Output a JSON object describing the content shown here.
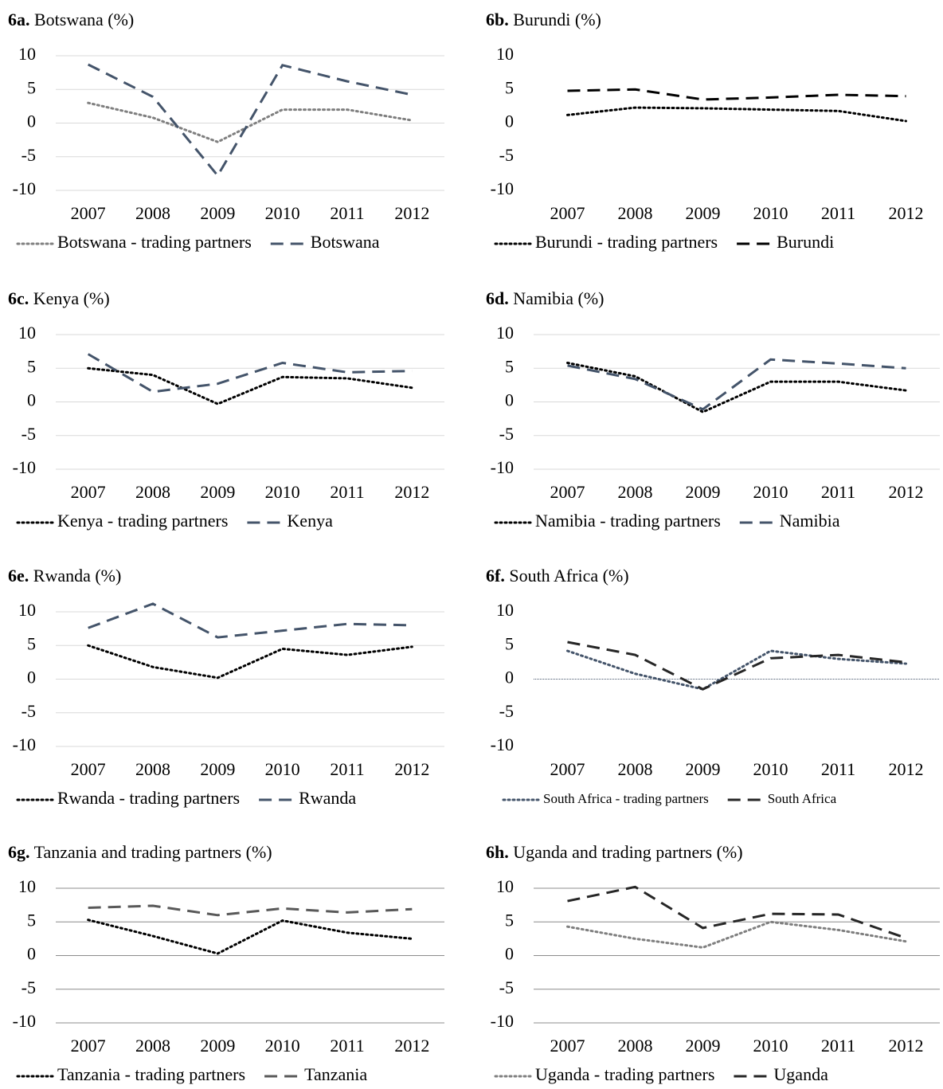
{
  "chart_data": [
    {
      "type": "line",
      "panel": "6a.",
      "title": "Botswana (%)",
      "categories": [
        "2007",
        "2008",
        "2009",
        "2010",
        "2011",
        "2012"
      ],
      "ylim": [
        -10,
        10
      ],
      "yticks": [
        -10,
        -5,
        0,
        5,
        10
      ],
      "grid": true,
      "grid_color": "#d9d9d9",
      "series": [
        {
          "name": "Botswana - trading partners",
          "color": "#7f7f7f",
          "dash": "dotted",
          "values": [
            3.0,
            0.8,
            -2.8,
            2.0,
            2.0,
            0.4
          ]
        },
        {
          "name": "Botswana",
          "color": "#44546a",
          "dash": "dashed",
          "values": [
            8.7,
            3.9,
            -7.8,
            8.6,
            6.2,
            4.2
          ]
        }
      ]
    },
    {
      "type": "line",
      "panel": "6b.",
      "title": "Burundi (%)",
      "categories": [
        "2007",
        "2008",
        "2009",
        "2010",
        "2011",
        "2012"
      ],
      "ylim": [
        -10,
        10
      ],
      "yticks": [
        -10,
        -5,
        0,
        5,
        10
      ],
      "grid": false,
      "series": [
        {
          "name": "Burundi - trading partners",
          "color": "#000000",
          "dash": "dotted",
          "values": [
            1.2,
            2.3,
            2.2,
            2.0,
            1.8,
            0.3
          ]
        },
        {
          "name": "Burundi",
          "color": "#000000",
          "dash": "dashed",
          "values": [
            4.8,
            5.0,
            3.5,
            3.8,
            4.2,
            4.0
          ]
        }
      ]
    },
    {
      "type": "line",
      "panel": "6c.",
      "title": "Kenya (%)",
      "categories": [
        "2007",
        "2008",
        "2009",
        "2010",
        "2011",
        "2012"
      ],
      "ylim": [
        -10,
        10
      ],
      "yticks": [
        -10,
        -5,
        0,
        5,
        10
      ],
      "grid": true,
      "grid_color": "#d9d9d9",
      "series": [
        {
          "name": "Kenya - trading partners",
          "color": "#000000",
          "dash": "dotted",
          "values": [
            5.0,
            4.0,
            -0.3,
            3.7,
            3.5,
            2.1
          ]
        },
        {
          "name": "Kenya",
          "color": "#44546a",
          "dash": "dashed",
          "values": [
            7.1,
            1.5,
            2.7,
            5.8,
            4.4,
            4.6
          ]
        }
      ]
    },
    {
      "type": "line",
      "panel": "6d.",
      "title": "Namibia (%)",
      "categories": [
        "2007",
        "2008",
        "2009",
        "2010",
        "2011",
        "2012"
      ],
      "ylim": [
        -10,
        10
      ],
      "yticks": [
        -10,
        -5,
        0,
        5,
        10
      ],
      "grid": true,
      "grid_color": "#d9d9d9",
      "series": [
        {
          "name": "Namibia -  trading partners",
          "color": "#000000",
          "dash": "dotted",
          "values": [
            5.8,
            3.8,
            -1.5,
            3.0,
            3.0,
            1.7
          ]
        },
        {
          "name": "Namibia",
          "color": "#44546a",
          "dash": "dashed",
          "values": [
            5.4,
            3.4,
            -1.1,
            6.3,
            5.7,
            5.0
          ]
        }
      ]
    },
    {
      "type": "line",
      "panel": "6e.",
      "title": "Rwanda (%)",
      "categories": [
        "2007",
        "2008",
        "2009",
        "2010",
        "2011",
        "2012"
      ],
      "ylim": [
        -10,
        10
      ],
      "yticks": [
        -10,
        -5,
        0,
        5,
        10
      ],
      "grid": true,
      "grid_color": "#d9d9d9",
      "series": [
        {
          "name": "Rwanda - trading partners",
          "color": "#000000",
          "dash": "dotted",
          "values": [
            5.0,
            1.8,
            0.2,
            4.5,
            3.6,
            4.8
          ]
        },
        {
          "name": "Rwanda",
          "color": "#44546a",
          "dash": "dashed",
          "values": [
            7.6,
            11.2,
            6.2,
            7.2,
            8.2,
            8.0
          ]
        }
      ]
    },
    {
      "type": "line",
      "panel": "6f.",
      "title": "South Africa (%)",
      "categories": [
        "2007",
        "2008",
        "2009",
        "2010",
        "2011",
        "2012"
      ],
      "ylim": [
        -10,
        10
      ],
      "yticks": [
        -10,
        -5,
        0,
        5,
        10
      ],
      "grid": false,
      "zero_line": true,
      "legend_small": true,
      "series": [
        {
          "name": "South Africa - trading partners",
          "color": "#44546a",
          "dash": "dotted",
          "values": [
            4.2,
            0.8,
            -1.5,
            4.2,
            3.0,
            2.3
          ]
        },
        {
          "name": "South Africa",
          "color": "#262626",
          "dash": "dashed",
          "values": [
            5.5,
            3.6,
            -1.5,
            3.1,
            3.6,
            2.5
          ]
        }
      ]
    },
    {
      "type": "line",
      "panel": "6g.",
      "title": "Tanzania and trading partners (%)",
      "categories": [
        "2007",
        "2008",
        "2009",
        "2010",
        "2011",
        "2012"
      ],
      "ylim": [
        -10,
        10
      ],
      "yticks": [
        -10,
        -5,
        0,
        5,
        10
      ],
      "grid": true,
      "grid_color": "#8c8c8c",
      "series": [
        {
          "name": "Tanzania - trading partners",
          "color": "#000000",
          "dash": "dotted",
          "values": [
            5.3,
            2.9,
            0.3,
            5.2,
            3.4,
            2.5
          ]
        },
        {
          "name": "Tanzania",
          "color": "#595959",
          "dash": "dashed",
          "values": [
            7.1,
            7.4,
            6.0,
            7.0,
            6.4,
            6.9
          ]
        }
      ]
    },
    {
      "type": "line",
      "panel": "6h.",
      "title": "Uganda and trading partners (%)",
      "categories": [
        "2007",
        "2008",
        "2009",
        "2010",
        "2011",
        "2012"
      ],
      "ylim": [
        -10,
        10
      ],
      "yticks": [
        -10,
        -5,
        0,
        5,
        10
      ],
      "grid": true,
      "grid_color": "#8c8c8c",
      "series": [
        {
          "name": "Uganda - trading partners",
          "color": "#7f7f7f",
          "dash": "dotted",
          "values": [
            4.3,
            2.5,
            1.2,
            5.0,
            3.8,
            2.1
          ]
        },
        {
          "name": "Uganda",
          "color": "#262626",
          "dash": "dashed",
          "values": [
            8.1,
            10.2,
            4.1,
            6.2,
            6.1,
            2.6
          ]
        }
      ]
    }
  ]
}
